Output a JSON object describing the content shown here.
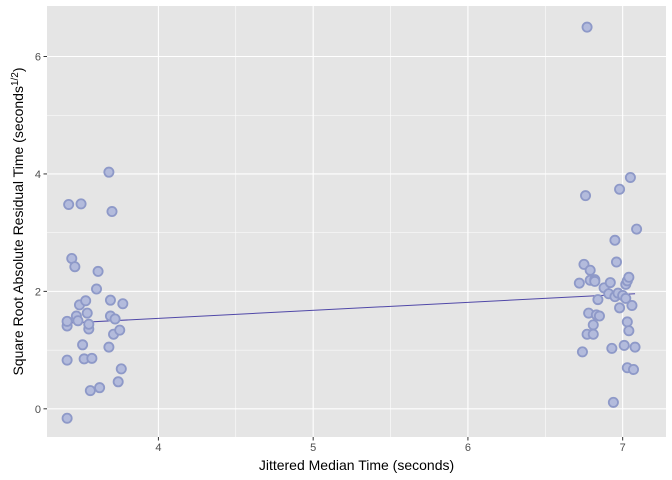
{
  "chart_data": {
    "type": "scatter",
    "title": "",
    "xlabel": "Jittered Median Time (seconds)",
    "ylabel_main": "Square Root Absolute Residual Time (seconds",
    "ylabel_sup": "1/2",
    "ylabel_close": ")",
    "xlim": [
      3.28,
      7.28
    ],
    "ylim": [
      -0.48,
      6.86
    ],
    "x_ticks": [
      4,
      5,
      6,
      7
    ],
    "x_tick_labels": [
      "4",
      "5",
      "6",
      "7"
    ],
    "y_ticks": [
      0,
      2,
      4,
      6
    ],
    "y_tick_labels": [
      "0",
      "2",
      "4",
      "6"
    ],
    "grid": true,
    "legend": "none",
    "colors": {
      "panel_background": "#e5e5e5",
      "gridline": "#ffffff",
      "point_fill": "#b3bbdc",
      "point_stroke": "#8e99c8",
      "trend_line": "#5048a8"
    },
    "trend_line": {
      "x": [
        3.41,
        7.08
      ],
      "y": [
        1.46,
        1.96
      ]
    },
    "points": [
      {
        "x": 3.41,
        "y": -0.16
      },
      {
        "x": 3.41,
        "y": 0.83
      },
      {
        "x": 3.41,
        "y": 1.41
      },
      {
        "x": 3.41,
        "y": 1.49
      },
      {
        "x": 3.42,
        "y": 3.48
      },
      {
        "x": 3.44,
        "y": 2.56
      },
      {
        "x": 3.46,
        "y": 2.42
      },
      {
        "x": 3.47,
        "y": 1.58
      },
      {
        "x": 3.48,
        "y": 1.5
      },
      {
        "x": 3.49,
        "y": 1.77
      },
      {
        "x": 3.5,
        "y": 3.49
      },
      {
        "x": 3.51,
        "y": 1.09
      },
      {
        "x": 3.52,
        "y": 0.85
      },
      {
        "x": 3.53,
        "y": 1.84
      },
      {
        "x": 3.54,
        "y": 1.63
      },
      {
        "x": 3.55,
        "y": 1.36
      },
      {
        "x": 3.55,
        "y": 1.44
      },
      {
        "x": 3.56,
        "y": 0.31
      },
      {
        "x": 3.57,
        "y": 0.86
      },
      {
        "x": 3.6,
        "y": 2.04
      },
      {
        "x": 3.61,
        "y": 2.34
      },
      {
        "x": 3.62,
        "y": 0.36
      },
      {
        "x": 3.68,
        "y": 1.05
      },
      {
        "x": 3.68,
        "y": 4.03
      },
      {
        "x": 3.69,
        "y": 1.58
      },
      {
        "x": 3.69,
        "y": 1.85
      },
      {
        "x": 3.7,
        "y": 3.36
      },
      {
        "x": 3.71,
        "y": 1.27
      },
      {
        "x": 3.72,
        "y": 1.53
      },
      {
        "x": 3.74,
        "y": 0.46
      },
      {
        "x": 3.75,
        "y": 1.34
      },
      {
        "x": 3.76,
        "y": 0.68
      },
      {
        "x": 3.77,
        "y": 1.79
      },
      {
        "x": 6.72,
        "y": 2.14
      },
      {
        "x": 6.74,
        "y": 0.97
      },
      {
        "x": 6.75,
        "y": 2.46
      },
      {
        "x": 6.76,
        "y": 3.63
      },
      {
        "x": 6.77,
        "y": 6.5
      },
      {
        "x": 6.77,
        "y": 1.27
      },
      {
        "x": 6.78,
        "y": 1.63
      },
      {
        "x": 6.79,
        "y": 2.36
      },
      {
        "x": 6.79,
        "y": 2.19
      },
      {
        "x": 6.81,
        "y": 1.27
      },
      {
        "x": 6.81,
        "y": 1.43
      },
      {
        "x": 6.82,
        "y": 2.2
      },
      {
        "x": 6.82,
        "y": 2.17
      },
      {
        "x": 6.83,
        "y": 1.6
      },
      {
        "x": 6.84,
        "y": 1.86
      },
      {
        "x": 6.85,
        "y": 1.58
      },
      {
        "x": 6.88,
        "y": 2.06
      },
      {
        "x": 6.91,
        "y": 1.96
      },
      {
        "x": 6.92,
        "y": 2.15
      },
      {
        "x": 6.93,
        "y": 1.03
      },
      {
        "x": 6.94,
        "y": 0.11
      },
      {
        "x": 6.95,
        "y": 1.91
      },
      {
        "x": 6.95,
        "y": 2.87
      },
      {
        "x": 6.96,
        "y": 2.5
      },
      {
        "x": 6.97,
        "y": 1.97
      },
      {
        "x": 6.98,
        "y": 1.72
      },
      {
        "x": 6.98,
        "y": 3.74
      },
      {
        "x": 7.0,
        "y": 1.93
      },
      {
        "x": 7.01,
        "y": 1.08
      },
      {
        "x": 7.02,
        "y": 2.12
      },
      {
        "x": 7.02,
        "y": 1.88
      },
      {
        "x": 7.03,
        "y": 2.18
      },
      {
        "x": 7.03,
        "y": 1.48
      },
      {
        "x": 7.03,
        "y": 0.7
      },
      {
        "x": 7.04,
        "y": 2.24
      },
      {
        "x": 7.04,
        "y": 1.33
      },
      {
        "x": 7.05,
        "y": 3.94
      },
      {
        "x": 7.06,
        "y": 1.76
      },
      {
        "x": 7.07,
        "y": 0.67
      },
      {
        "x": 7.08,
        "y": 1.05
      },
      {
        "x": 7.09,
        "y": 3.06
      }
    ]
  }
}
